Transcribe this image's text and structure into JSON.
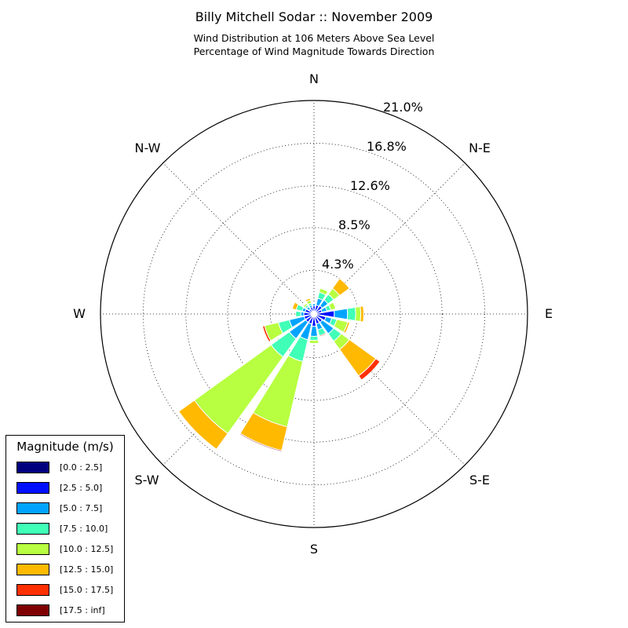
{
  "header": {
    "title": "Billy Mitchell Sodar :: November 2009",
    "subtitle_line1": "Wind Distribution at 106 Meters Above Sea Level",
    "subtitle_line2": "Percentage of Wind Magnitude Towards Direction"
  },
  "legend": {
    "title": "Magnitude (m/s)",
    "items": [
      {
        "label": "[0.0 : 2.5]",
        "color": "#00007f"
      },
      {
        "label": "[2.5 : 5.0]",
        "color": "#0010ff"
      },
      {
        "label": "[5.0 : 7.5]",
        "color": "#00a4ff"
      },
      {
        "label": "[7.5 : 10.0]",
        "color": "#40ffb7"
      },
      {
        "label": "[10.0 : 12.5]",
        "color": "#b7ff40"
      },
      {
        "label": "[12.5 : 15.0]",
        "color": "#ffb900"
      },
      {
        "label": "[15.0 : 17.5]",
        "color": "#ff3000"
      },
      {
        "label": "[17.5 : inf]",
        "color": "#7f0000"
      }
    ]
  },
  "chart_data": {
    "type": "windrose",
    "title": "Billy Mitchell Sodar :: November 2009",
    "subtitle": "Wind Distribution at 106 Meters Above Sea Level / Percentage of Wind Magnitude Towards Direction",
    "direction_labels": [
      {
        "label": "N",
        "angle": 0
      },
      {
        "label": "N-E",
        "angle": 45
      },
      {
        "label": "E",
        "angle": 90
      },
      {
        "label": "S-E",
        "angle": 135
      },
      {
        "label": "S",
        "angle": 180
      },
      {
        "label": "S-W",
        "angle": 225
      },
      {
        "label": "W",
        "angle": 270
      },
      {
        "label": "N-W",
        "angle": 315
      }
    ],
    "radial_ticks": [
      "4.3%",
      "8.5%",
      "12.6%",
      "16.8%",
      "21.0%"
    ],
    "radial_tick_values": [
      4.3,
      8.5,
      12.6,
      16.8,
      21.0
    ],
    "rmax": 21.0,
    "grid": true,
    "legend_position": "lower-left",
    "bins": [
      "[0.0 : 2.5]",
      "[2.5 : 5.0]",
      "[5.0 : 7.5]",
      "[7.5 : 10.0]",
      "[10.0 : 12.5]",
      "[12.5 : 15.0]",
      "[15.0 : 17.5]",
      "[17.5 : inf]"
    ],
    "sectors": [
      {
        "direction": 0,
        "cumulative": [
          0.3,
          0.8,
          1.0,
          1.0,
          1.0,
          1.0,
          1.0,
          1.0
        ]
      },
      {
        "direction": 22.5,
        "cumulative": [
          0.3,
          0.9,
          1.6,
          2.2,
          2.6,
          2.6,
          2.6,
          2.6
        ]
      },
      {
        "direction": 45,
        "cumulative": [
          0.3,
          1.0,
          1.7,
          2.4,
          3.1,
          4.3,
          4.3,
          4.3
        ]
      },
      {
        "direction": 67.5,
        "cumulative": [
          0.3,
          0.8,
          1.3,
          1.7,
          2.2,
          2.2,
          2.2,
          2.2
        ]
      },
      {
        "direction": 90,
        "cumulative": [
          0.3,
          2.0,
          3.3,
          4.1,
          4.6,
          4.9,
          4.9,
          4.9
        ]
      },
      {
        "direction": 112.5,
        "cumulative": [
          0.3,
          1.2,
          1.8,
          2.3,
          3.4,
          3.6,
          3.6,
          3.6
        ]
      },
      {
        "direction": 135,
        "cumulative": [
          0.3,
          1.0,
          2.4,
          3.3,
          4.3,
          7.5,
          8.0,
          8.0
        ]
      },
      {
        "direction": 157.5,
        "cumulative": [
          0.3,
          1.0,
          1.6,
          2.2,
          2.2,
          2.2,
          2.3,
          2.3
        ]
      },
      {
        "direction": 180,
        "cumulative": [
          0.3,
          1.2,
          2.2,
          2.6,
          2.9,
          2.9,
          2.9,
          2.9
        ]
      },
      {
        "direction": 202.5,
        "cumulative": [
          0.3,
          1.0,
          2.6,
          4.8,
          11.4,
          13.8,
          13.8,
          13.9
        ]
      },
      {
        "direction": 225,
        "cumulative": [
          0.3,
          1.0,
          3.0,
          5.2,
          14.5,
          16.4,
          16.4,
          16.4
        ]
      },
      {
        "direction": 247.5,
        "cumulative": [
          0.3,
          1.0,
          2.5,
          3.6,
          5.0,
          5.0,
          5.2,
          5.2
        ]
      },
      {
        "direction": 270,
        "cumulative": [
          0.3,
          1.0,
          1.3,
          1.8,
          1.8,
          1.8,
          1.8,
          1.8
        ]
      },
      {
        "direction": 292.5,
        "cumulative": [
          0.3,
          0.9,
          1.2,
          1.8,
          1.8,
          2.2,
          2.2,
          2.2
        ]
      },
      {
        "direction": 315,
        "cumulative": [
          0.3,
          0.6,
          0.9,
          1.1,
          1.3,
          1.3,
          1.3,
          1.3
        ]
      },
      {
        "direction": 337.5,
        "cumulative": [
          0.3,
          0.7,
          0.9,
          1.1,
          1.4,
          1.6,
          1.6,
          1.6
        ]
      }
    ]
  }
}
